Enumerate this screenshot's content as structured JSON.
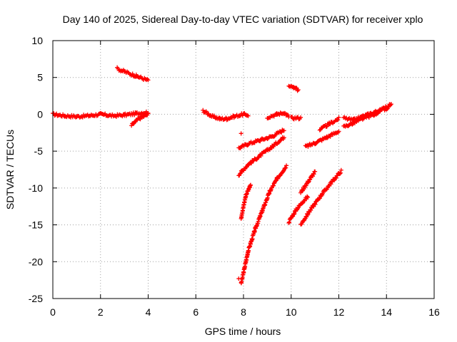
{
  "chart_data": {
    "type": "scatter",
    "title": "Day 140 of 2025, Sidereal Day-to-day VTEC variation (SDTVAR) for receiver xplo",
    "xlabel": "GPS time / hours",
    "ylabel": "SDTVAR / TECUs",
    "xlim": [
      0,
      16
    ],
    "ylim": [
      -25,
      10
    ],
    "x_ticks": [
      0,
      2,
      4,
      6,
      8,
      10,
      12,
      14,
      16
    ],
    "y_ticks": [
      -25,
      -20,
      -15,
      -10,
      -5,
      0,
      5,
      10
    ],
    "grid": true,
    "legend": "none",
    "marker": "+",
    "color": "#ff0000",
    "segments": [
      {
        "x": [
          0.0,
          0.5,
          1.0,
          1.5,
          2.0,
          2.5,
          3.0,
          3.5,
          4.0
        ],
        "y": [
          0.0,
          -0.2,
          -0.3,
          -0.2,
          0.0,
          -0.2,
          -0.1,
          0.1,
          0.3
        ]
      },
      {
        "x": [
          2.7,
          3.0,
          3.5,
          4.0
        ],
        "y": [
          6.2,
          5.8,
          5.2,
          4.6
        ]
      },
      {
        "x": [
          3.3,
          3.6,
          4.0
        ],
        "y": [
          -1.5,
          -0.6,
          0.0
        ]
      },
      {
        "x": [
          6.3,
          6.7,
          7.0,
          7.3,
          7.6,
          8.0,
          8.2
        ],
        "y": [
          0.5,
          -0.3,
          -0.6,
          -0.6,
          -0.3,
          0.0,
          -0.1
        ]
      },
      {
        "x": [
          7.8,
          8.2,
          8.7,
          9.2,
          9.7
        ],
        "y": [
          -4.6,
          -4.0,
          -3.5,
          -3.0,
          -2.1
        ]
      },
      {
        "x": [
          7.8,
          8.2,
          8.7,
          9.2,
          9.7
        ],
        "y": [
          -8.2,
          -6.8,
          -5.6,
          -4.4,
          -3.1
        ]
      },
      {
        "x": [
          7.9,
          8.1,
          8.3
        ],
        "y": [
          -14.0,
          -11.0,
          -9.5
        ]
      },
      {
        "x": [
          7.9,
          8.2,
          8.5,
          8.8,
          9.1,
          9.4,
          9.8
        ],
        "y": [
          -23.0,
          -18.5,
          -15.5,
          -13.0,
          -10.5,
          -8.8,
          -7.0
        ]
      },
      {
        "x": [
          9.0,
          9.4,
          9.7,
          9.9
        ],
        "y": [
          -0.4,
          0.0,
          0.2,
          -0.3
        ]
      },
      {
        "x": [
          9.9,
          10.1,
          10.3
        ],
        "y": [
          3.8,
          3.6,
          3.3
        ]
      },
      {
        "x": [
          10.0,
          10.4
        ],
        "y": [
          -0.5,
          -0.5
        ]
      },
      {
        "x": [
          9.9,
          10.2,
          10.5,
          10.7
        ],
        "y": [
          -14.6,
          -13.0,
          -11.8,
          -11.2
        ]
      },
      {
        "x": [
          10.4,
          10.7,
          11.0
        ],
        "y": [
          -10.6,
          -9.2,
          -7.8
        ]
      },
      {
        "x": [
          10.6,
          11.0,
          11.5,
          12.0
        ],
        "y": [
          -4.4,
          -3.9,
          -3.1,
          -2.3
        ]
      },
      {
        "x": [
          11.2,
          11.6,
          12.0
        ],
        "y": [
          -2.1,
          -1.3,
          -0.6
        ]
      },
      {
        "x": [
          10.4,
          10.8,
          11.3,
          11.7,
          12.1
        ],
        "y": [
          -15.0,
          -13.0,
          -10.8,
          -9.2,
          -7.7
        ]
      },
      {
        "x": [
          12.2,
          12.6,
          13.0,
          13.5,
          14.0
        ],
        "y": [
          -1.7,
          -1.2,
          -0.6,
          0.0,
          1.0
        ]
      },
      {
        "x": [
          12.2,
          12.6,
          13.0,
          13.5,
          14.0,
          14.2
        ],
        "y": [
          -0.5,
          -0.8,
          -0.3,
          0.3,
          0.8,
          1.5
        ]
      }
    ],
    "isolated_points": [
      {
        "x": 7.9,
        "y": -2.6
      },
      {
        "x": 7.8,
        "y": -22.3
      }
    ]
  }
}
